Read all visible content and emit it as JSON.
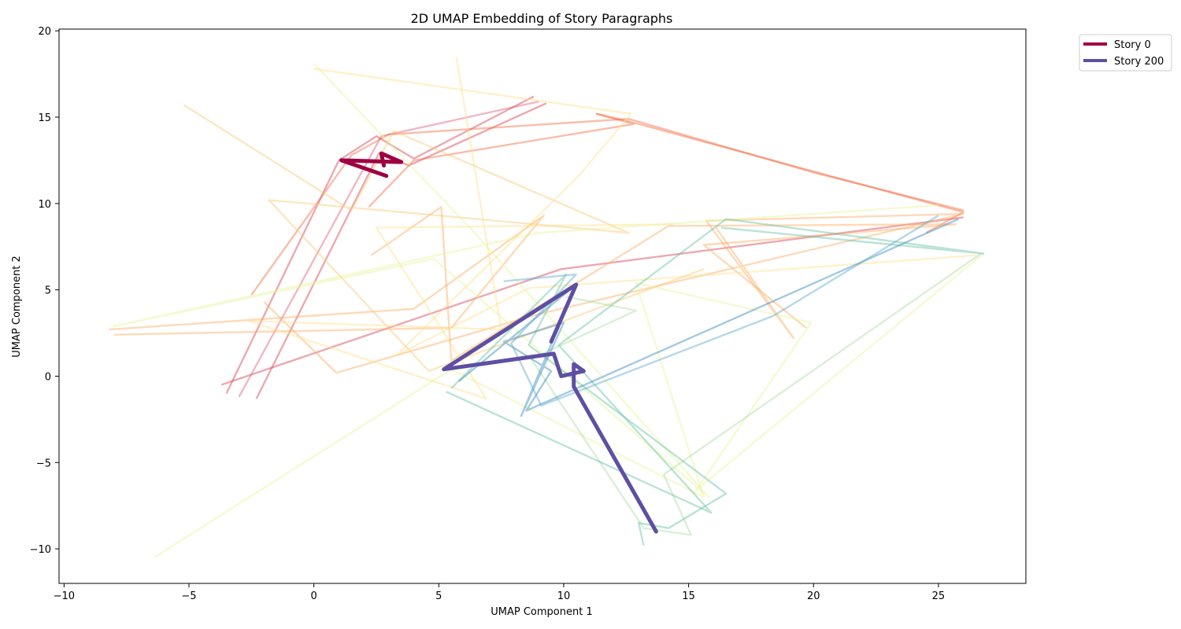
{
  "chart_data": {
    "type": "line",
    "title": "2D UMAP Embedding of Story Paragraphs",
    "xlabel": "UMAP Component 1",
    "ylabel": "UMAP Component 2",
    "xlim": [
      -10.2,
      28.5
    ],
    "ylim": [
      -12,
      20.1
    ],
    "xticks": [
      -10,
      -5,
      0,
      5,
      10,
      15,
      20,
      25
    ],
    "yticks": [
      -10,
      -5,
      0,
      5,
      10,
      15,
      20
    ],
    "grid": false,
    "legend_position": "upper-right-outside",
    "colormap": "Spectral",
    "highlighted": [
      {
        "name": "Story 0",
        "color": "#9e0142",
        "points": [
          [
            2.9,
            11.6
          ],
          [
            1.1,
            12.5
          ],
          [
            3.5,
            12.4
          ],
          [
            2.7,
            12.9
          ],
          [
            2.8,
            12.2
          ]
        ]
      },
      {
        "name": "Story 200",
        "color": "#5e4fa2",
        "points": [
          [
            13.7,
            -9.0
          ],
          [
            10.4,
            -0.6
          ],
          [
            10.4,
            0.7
          ],
          [
            10.8,
            0.3
          ],
          [
            9.9,
            0.0
          ],
          [
            9.6,
            1.3
          ],
          [
            5.2,
            0.4
          ],
          [
            10.5,
            5.3
          ],
          [
            9.5,
            2.0
          ]
        ]
      }
    ],
    "background_series": [
      {
        "color": "#d53e4f",
        "points": [
          [
            -3.5,
            -1.0
          ],
          [
            1.0,
            12.5
          ],
          [
            2.5,
            13.9
          ],
          [
            4.0,
            12.6
          ],
          [
            8.8,
            16.2
          ]
        ]
      },
      {
        "color": "#d53e4f",
        "points": [
          [
            -2.3,
            -1.3
          ],
          [
            2.6,
            12.9
          ],
          [
            3.8,
            12.2
          ],
          [
            9.3,
            15.8
          ]
        ]
      },
      {
        "color": "#d53e4f",
        "points": [
          [
            -3.7,
            -0.5
          ],
          [
            9.9,
            6.2
          ],
          [
            26.0,
            9.2
          ]
        ]
      },
      {
        "color": "#e0607a",
        "points": [
          [
            -3.0,
            -1.2
          ],
          [
            2.7,
            13.9
          ],
          [
            9.0,
            15.9
          ]
        ]
      },
      {
        "color": "#f46d43",
        "points": [
          [
            11.3,
            15.2
          ],
          [
            12.5,
            14.8
          ],
          [
            26.0,
            9.5
          ],
          [
            24.5,
            8.3
          ]
        ]
      },
      {
        "color": "#f46d43",
        "points": [
          [
            2.2,
            9.8
          ],
          [
            4.0,
            12.5
          ],
          [
            12.8,
            14.6
          ],
          [
            11.3,
            15.2
          ]
        ]
      },
      {
        "color": "#f46d43",
        "points": [
          [
            -2.5,
            4.7
          ],
          [
            1.5,
            12.8
          ],
          [
            3.0,
            14.0
          ],
          [
            12.6,
            14.9
          ],
          [
            20.0,
            11.8
          ],
          [
            26.0,
            9.6
          ]
        ]
      },
      {
        "color": "#fdae61",
        "points": [
          [
            -8.2,
            2.7
          ],
          [
            4.0,
            3.9
          ],
          [
            9.2,
            9.3
          ],
          [
            5.5,
            2.8
          ],
          [
            -8.0,
            2.4
          ]
        ]
      },
      {
        "color": "#fdae61",
        "points": [
          [
            -2.0,
            4.3
          ],
          [
            0.9,
            0.2
          ],
          [
            9.0,
            3.6
          ],
          [
            26.0,
            9.4
          ],
          [
            15.7,
            9.0
          ],
          [
            19.2,
            2.2
          ],
          [
            16.1,
            8.6
          ]
        ]
      },
      {
        "color": "#fdae61",
        "points": [
          [
            2.3,
            7.0
          ],
          [
            5.1,
            9.8
          ],
          [
            5.5,
            0.9
          ],
          [
            14.2,
            8.7
          ],
          [
            25.7,
            8.8
          ],
          [
            15.6,
            7.6
          ],
          [
            19.7,
            2.8
          ]
        ]
      },
      {
        "color": "#f8c97a",
        "points": [
          [
            -5.2,
            15.7
          ],
          [
            1.5,
            9.6
          ],
          [
            3.2,
            14.2
          ],
          [
            12.6,
            8.3
          ],
          [
            -1.8,
            10.2
          ],
          [
            4.6,
            0.3
          ],
          [
            15.6,
            6.2
          ]
        ]
      },
      {
        "color": "#fee08b",
        "points": [
          [
            5.7,
            18.5
          ],
          [
            7.5,
            2.7
          ],
          [
            -2.6,
            3.2
          ],
          [
            6.9,
            -1.3
          ],
          [
            2.5,
            8.6
          ],
          [
            14.4,
            8.8
          ]
        ]
      },
      {
        "color": "#fee08b",
        "points": [
          [
            0.0,
            17.8
          ],
          [
            12.7,
            15.2
          ],
          [
            10.6,
            11.6
          ],
          [
            3.3,
            1.2
          ],
          [
            8.6,
            5.1
          ],
          [
            26.5,
            7.0
          ]
        ]
      },
      {
        "color": "#e6f598",
        "points": [
          [
            0.0,
            18.1
          ],
          [
            6.5,
            8.2
          ],
          [
            15.8,
            -7.0
          ],
          [
            4.8,
            6.8
          ],
          [
            -8.0,
            2.9
          ],
          [
            9.0,
            8.3
          ],
          [
            25.0,
            9.9
          ]
        ]
      },
      {
        "color": "#e6f598",
        "points": [
          [
            -6.4,
            -10.5
          ],
          [
            5.5,
            0.4
          ],
          [
            15.6,
            -7.0
          ],
          [
            12.9,
            5.4
          ],
          [
            19.9,
            3.1
          ],
          [
            15.3,
            -6.6
          ],
          [
            26.8,
            7.1
          ]
        ]
      },
      {
        "color": "#abdda4",
        "points": [
          [
            10.1,
            4.6
          ],
          [
            12.9,
            3.8
          ],
          [
            8.7,
            1.0
          ],
          [
            13.2,
            -8.8
          ],
          [
            15.1,
            -9.2
          ],
          [
            14.0,
            -5.7
          ],
          [
            26.7,
            7.1
          ]
        ]
      },
      {
        "color": "#66c2a5",
        "points": [
          [
            5.5,
            -0.7
          ],
          [
            10.1,
            5.9
          ],
          [
            8.6,
            1.8
          ],
          [
            16.5,
            -6.8
          ],
          [
            14.2,
            -8.8
          ],
          [
            13.0,
            -8.5
          ],
          [
            13.2,
            -9.8
          ]
        ]
      },
      {
        "color": "#66c2a5",
        "points": [
          [
            5.3,
            -0.9
          ],
          [
            15.9,
            -7.9
          ],
          [
            9.8,
            1.8
          ],
          [
            16.5,
            9.1
          ],
          [
            26.8,
            7.1
          ],
          [
            16.3,
            8.6
          ]
        ]
      },
      {
        "color": "#3288bd",
        "points": [
          [
            5.8,
            -0.3
          ],
          [
            10.5,
            5.3
          ],
          [
            8.3,
            -2.3
          ],
          [
            10.0,
            3.1
          ],
          [
            7.6,
            2.0
          ],
          [
            9.5,
            0.3
          ],
          [
            8.5,
            -2.0
          ],
          [
            25.8,
            9.1
          ]
        ]
      },
      {
        "color": "#5aa9cf",
        "points": [
          [
            7.6,
            5.5
          ],
          [
            10.5,
            5.9
          ],
          [
            7.9,
            1.9
          ],
          [
            9.1,
            -1.7
          ],
          [
            18.4,
            3.5
          ],
          [
            25.0,
            9.3
          ]
        ]
      }
    ]
  }
}
